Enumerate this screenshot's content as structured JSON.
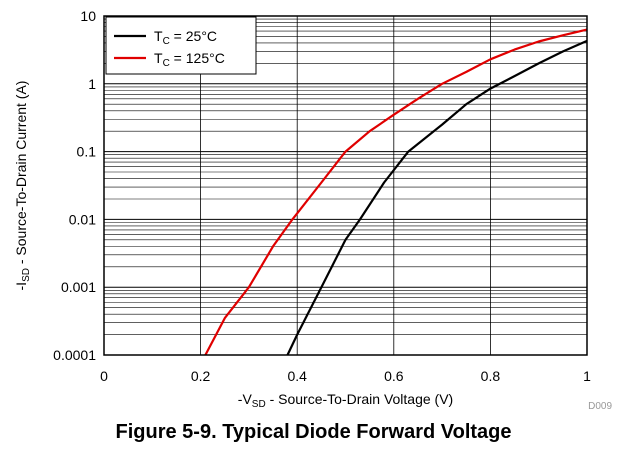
{
  "caption": "Figure 5-9. Typical Diode Forward Voltage",
  "chart_data": {
    "type": "line",
    "xlabel": {
      "prefix": "-V",
      "sub": "SD",
      "rest": " - Source-To-Drain Voltage (V)"
    },
    "ylabel": {
      "prefix": "-I",
      "sub": "SD",
      "rest": " - Source-To-Drain Current (A)"
    },
    "xlim": [
      0,
      1
    ],
    "ylim": [
      0.0001,
      10
    ],
    "y_scale": "log",
    "x_ticks": [
      0,
      0.2,
      0.4,
      0.6,
      0.8,
      1
    ],
    "x_tick_labels": [
      "0",
      "0.2",
      "0.4",
      "0.6",
      "0.8",
      "1"
    ],
    "y_ticks": [
      0.0001,
      0.001,
      0.01,
      0.1,
      1,
      10
    ],
    "y_tick_labels": [
      "0.0001",
      "0.001",
      "0.01",
      "0.1",
      "1",
      "10"
    ],
    "grid": true,
    "legend_position": "top-left",
    "figure_id": "D009",
    "series": [
      {
        "label_prefix": "T",
        "label_sub": "C",
        "label_rest": " = 25°C",
        "color": "#000000",
        "x": [
          0.38,
          0.4,
          0.45,
          0.5,
          0.53,
          0.58,
          0.63,
          0.7,
          0.75,
          0.8,
          0.85,
          0.9,
          0.95,
          1.0
        ],
        "y": [
          0.0001,
          0.0002,
          0.001,
          0.005,
          0.01,
          0.035,
          0.1,
          0.25,
          0.5,
          0.85,
          1.3,
          2.0,
          3.0,
          4.3
        ]
      },
      {
        "label_prefix": "T",
        "label_sub": "C",
        "label_rest": " = 125°C",
        "color": "#e00000",
        "x": [
          0.21,
          0.25,
          0.3,
          0.35,
          0.39,
          0.45,
          0.5,
          0.55,
          0.6,
          0.65,
          0.7,
          0.75,
          0.8,
          0.85,
          0.9,
          0.95,
          1.0
        ],
        "y": [
          0.0001,
          0.00035,
          0.001,
          0.004,
          0.01,
          0.035,
          0.1,
          0.2,
          0.35,
          0.6,
          1.0,
          1.5,
          2.3,
          3.2,
          4.2,
          5.2,
          6.3
        ]
      }
    ]
  }
}
